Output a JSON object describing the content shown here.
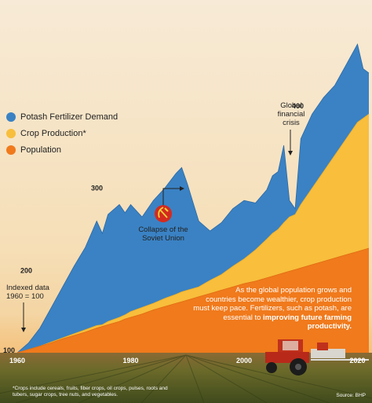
{
  "chart_data": {
    "type": "area",
    "x": [
      1960,
      1962,
      1964,
      1966,
      1968,
      1970,
      1972,
      1974,
      1975,
      1976,
      1978,
      1979,
      1980,
      1982,
      1984,
      1986,
      1988,
      1989,
      1990,
      1992,
      1994,
      1996,
      1998,
      2000,
      2002,
      2004,
      2005,
      2006,
      2007,
      2008,
      2009,
      2010,
      2012,
      2014,
      2016,
      2018,
      2020,
      2021,
      2022
    ],
    "series": [
      {
        "name": "Potash Fertilizer Demand",
        "values": [
          100,
          112,
          130,
          155,
          180,
          205,
          228,
          260,
          245,
          268,
          280,
          270,
          280,
          265,
          285,
          300,
          318,
          325,
          305,
          260,
          248,
          258,
          275,
          285,
          282,
          298,
          315,
          320,
          352,
          285,
          275,
          360,
          390,
          410,
          425,
          450,
          475,
          445,
          440
        ]
      },
      {
        "name": "Crop Production*",
        "values": [
          100,
          104,
          108,
          113,
          118,
          123,
          128,
          133,
          134,
          138,
          143,
          146,
          150,
          155,
          160,
          166,
          171,
          174,
          176,
          180,
          188,
          195,
          205,
          214,
          225,
          238,
          245,
          250,
          258,
          265,
          268,
          280,
          300,
          320,
          340,
          360,
          380,
          385,
          390
        ]
      },
      {
        "name": "Population",
        "values": [
          100,
          104,
          108,
          112,
          117,
          121,
          125,
          130,
          132,
          134,
          138,
          141,
          143,
          147,
          152,
          156,
          160,
          162,
          164,
          168,
          172,
          176,
          180,
          184,
          187,
          191,
          193,
          195,
          197,
          199,
          201,
          203,
          207,
          211,
          215,
          219,
          223,
          225,
          227
        ]
      }
    ],
    "ylim": [
      100,
      500
    ],
    "yticks": [
      {
        "v": 100,
        "label": "100"
      },
      {
        "v": 200,
        "label": "200"
      },
      {
        "v": 300,
        "label": "300"
      },
      {
        "v": 400,
        "label": "400"
      }
    ],
    "xticks": [
      {
        "v": 1960,
        "label": "1960"
      },
      {
        "v": 1980,
        "label": "1980"
      },
      {
        "v": 2000,
        "label": "2000"
      },
      {
        "v": 2020,
        "label": "2020"
      }
    ]
  },
  "colors": {
    "potash": "#3a82c4",
    "crop": "#f8be3c",
    "population": "#f07a1c"
  },
  "legend": [
    {
      "label": "Potash Fertilizer Demand",
      "color": "#3a82c4"
    },
    {
      "label": "Crop Production*",
      "color": "#f8be3c"
    },
    {
      "label": "Population",
      "color": "#f07a1c"
    }
  ],
  "annotations": {
    "indexed_line1": "Indexed data",
    "indexed_line2": "1960 = 100",
    "soviet_line1": "Collapse of the",
    "soviet_line2": "Soviet Union",
    "crisis_line1": "Global",
    "crisis_line2": "financial",
    "crisis_line3": "crisis"
  },
  "callout": {
    "line1": "As the global population grows and",
    "line2": "countries become wealthier, crop production",
    "line3": "must keep pace. Fertilizers, such as potash, are",
    "line4_prefix": "essential to ",
    "line4_bold": "improving future farming productivity."
  },
  "footnote": "*Crops include cereals, fruits, fiber crops, oil crops, pulses, roots and tubers, sugar crops, tree nuts, and vegetables.",
  "source": "Source: BHP"
}
